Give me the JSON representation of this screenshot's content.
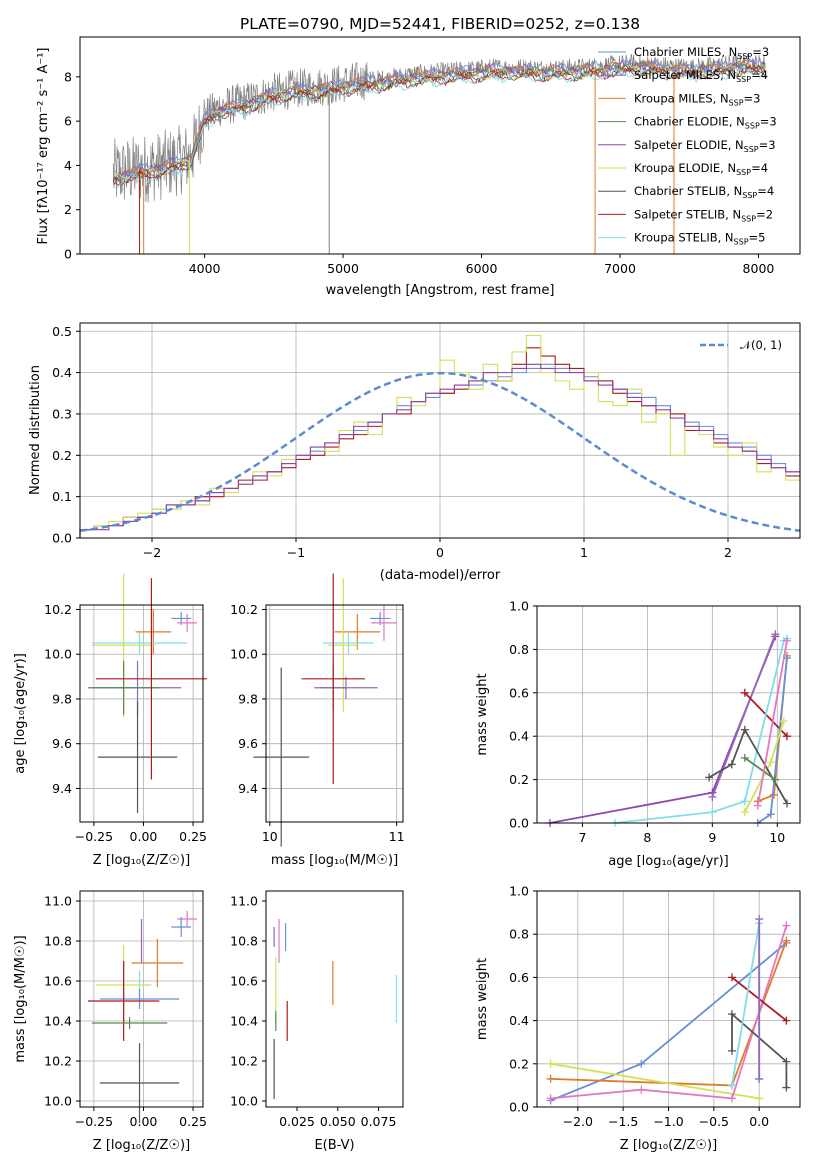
{
  "title": "PLATE=0790, MJD=52441, FIBERID=0252, z=0.138",
  "spectrum": {
    "xlabel": "wavelength [Angstrom, rest frame]",
    "ylabel": "Flux [fλ10⁻¹⁷ erg cm⁻² s⁻¹ A⁻¹]",
    "xlim": [
      3100,
      8300
    ],
    "ylim": [
      0,
      9.8
    ],
    "xticks": [
      "4000",
      "5000",
      "6000",
      "7000",
      "8000"
    ],
    "yticks": [
      "0",
      "2",
      "4",
      "6",
      "8"
    ],
    "legend": [
      {
        "name": "Chabrier MILES, N",
        "sub": "SSP",
        "tail": "=3",
        "color": "#6a8fd6"
      },
      {
        "name": "Salpeter MILES, N",
        "sub": "SSP",
        "tail": "=4",
        "color": "#9467bd"
      },
      {
        "name": "Kroupa MILES, N",
        "sub": "SSP",
        "tail": "=3",
        "color": "#e07b28"
      },
      {
        "name": "Chabrier ELODIE, N",
        "sub": "SSP",
        "tail": "=3",
        "color": "#5a8a4f"
      },
      {
        "name": "Salpeter ELODIE, N",
        "sub": "SSP",
        "tail": "=3",
        "color": "#8e44ad"
      },
      {
        "name": "Kroupa ELODIE, N",
        "sub": "SSP",
        "tail": "=4",
        "color": "#d4e157"
      },
      {
        "name": "Chabrier STELIB, N",
        "sub": "SSP",
        "tail": "=4",
        "color": "#555555"
      },
      {
        "name": "Salpeter STELIB, N",
        "sub": "SSP",
        "tail": "=2",
        "color": "#b0171f"
      },
      {
        "name": "Kroupa STELIB, N",
        "sub": "SSP",
        "tail": "=5",
        "color": "#80deea"
      }
    ]
  },
  "residuals": {
    "xlabel": "(data-model)/error",
    "ylabel": "Normed distribution",
    "legend": "𝒩(0, 1)",
    "xlim": [
      -2.5,
      2.5
    ],
    "ylim": [
      0,
      0.52
    ],
    "xticks": [
      "−2",
      "−1",
      "0",
      "1",
      "2"
    ],
    "yticks": [
      "0.0",
      "0.1",
      "0.2",
      "0.3",
      "0.4",
      "0.5"
    ]
  },
  "panel_age_z": {
    "xlabel": "Z [log₁₀(Z/Z☉)]",
    "ylabel": "age  [log₁₀(age/yr)]",
    "xticks": [
      "−0.25",
      "0.00",
      "0.25"
    ],
    "yticks": [
      "9.4",
      "9.6",
      "9.8",
      "10.0",
      "10.2"
    ]
  },
  "panel_age_mass": {
    "xlabel": "mass [log₁₀(M/M☉)]",
    "xticks": [
      "10",
      "11"
    ],
    "yticks": [
      "9.4",
      "9.6",
      "9.8",
      "10.0",
      "10.2"
    ]
  },
  "panel_mw_age": {
    "xlabel": "age  [log₁₀(age/yr)]",
    "ylabel": "mass weight",
    "xticks": [
      "7",
      "8",
      "9",
      "10"
    ],
    "yticks": [
      "0.0",
      "0.2",
      "0.4",
      "0.6",
      "0.8",
      "1.0"
    ]
  },
  "panel_mass_z": {
    "xlabel": "Z [log₁₀(Z/Z☉)]",
    "ylabel": "mass [log₁₀(M/M☉)]",
    "xticks": [
      "−0.25",
      "0.00",
      "0.25"
    ],
    "yticks": [
      "10.0",
      "10.2",
      "10.4",
      "10.6",
      "10.8",
      "11.0"
    ]
  },
  "panel_mass_ebv": {
    "xlabel": "E(B-V)",
    "xticks": [
      "0.025",
      "0.050",
      "0.075"
    ],
    "yticks": [
      "10.0",
      "10.2",
      "10.4",
      "10.6",
      "10.8",
      "11.0"
    ]
  },
  "panel_mw_z": {
    "xlabel": "Z [log₁₀(Z/Z☉)]",
    "ylabel": "mass weight",
    "xticks": [
      "−2.0",
      "−1.5",
      "−1.0",
      "−0.5",
      "0.0"
    ],
    "yticks": [
      "0.0",
      "0.2",
      "0.4",
      "0.6",
      "0.8",
      "1.0"
    ]
  },
  "chart_data": [
    {
      "type": "line",
      "panel": "spectrum",
      "title": "PLATE=0790, MJD=52441, FIBERID=0252, z=0.138",
      "xlabel": "wavelength [Angstrom, rest frame]",
      "ylabel": "Flux [fλ10⁻¹⁷ erg cm⁻² s⁻¹ A⁻¹]",
      "xlim": [
        3100,
        8300
      ],
      "ylim": [
        0,
        9.8
      ],
      "legend_position": "upper-right",
      "grid": false,
      "continuum": {
        "x": [
          3340,
          3500,
          3700,
          3900,
          4000,
          4100,
          4300,
          4500,
          4700,
          4900,
          5100,
          5300,
          5500,
          5700,
          5900,
          6100,
          6300,
          6500,
          6700,
          6900,
          7100,
          7300,
          7500,
          7700,
          7900,
          8050
        ],
        "y": [
          3.6,
          3.8,
          4.0,
          4.4,
          6.2,
          6.6,
          6.9,
          7.3,
          7.5,
          7.6,
          7.8,
          7.9,
          8.1,
          8.2,
          8.3,
          8.4,
          8.4,
          8.35,
          8.4,
          8.5,
          8.6,
          8.5,
          8.4,
          8.5,
          8.6,
          8.6
        ]
      }
    },
    {
      "type": "bar",
      "panel": "residuals",
      "xlabel": "(data-model)/error",
      "ylabel": "Normed distribution",
      "xlim": [
        -2.5,
        2.5
      ],
      "ylim": [
        0,
        0.52
      ],
      "grid": true,
      "bin_width": 0.1,
      "bin_start": -2.5,
      "series": [
        {
          "name": "",
          "color": "#6a8fd6",
          "values": [
            0.02,
            0.03,
            0.03,
            0.04,
            0.05,
            0.06,
            0.07,
            0.08,
            0.09,
            0.11,
            0.12,
            0.13,
            0.15,
            0.16,
            0.18,
            0.2,
            0.21,
            0.23,
            0.25,
            0.26,
            0.28,
            0.3,
            0.32,
            0.33,
            0.34,
            0.35,
            0.37,
            0.37,
            0.38,
            0.39,
            0.4,
            0.41,
            0.42,
            0.41,
            0.4,
            0.39,
            0.38,
            0.36,
            0.35,
            0.34,
            0.32,
            0.3,
            0.28,
            0.27,
            0.25,
            0.23,
            0.22,
            0.2,
            0.18,
            0.16
          ]
        },
        {
          "name": "",
          "color": "#b0171f",
          "values": [
            0.02,
            0.03,
            0.03,
            0.05,
            0.05,
            0.07,
            0.08,
            0.08,
            0.1,
            0.1,
            0.12,
            0.14,
            0.14,
            0.16,
            0.17,
            0.19,
            0.2,
            0.22,
            0.24,
            0.25,
            0.27,
            0.3,
            0.3,
            0.33,
            0.35,
            0.35,
            0.36,
            0.38,
            0.4,
            0.38,
            0.42,
            0.46,
            0.44,
            0.42,
            0.41,
            0.38,
            0.38,
            0.35,
            0.33,
            0.32,
            0.3,
            0.3,
            0.26,
            0.26,
            0.23,
            0.22,
            0.21,
            0.18,
            0.17,
            0.15
          ]
        },
        {
          "name": "",
          "color": "#d4e157",
          "values": [
            0.02,
            0.03,
            0.04,
            0.05,
            0.06,
            0.07,
            0.07,
            0.09,
            0.08,
            0.12,
            0.11,
            0.13,
            0.16,
            0.15,
            0.19,
            0.2,
            0.22,
            0.21,
            0.26,
            0.28,
            0.25,
            0.3,
            0.34,
            0.32,
            0.35,
            0.43,
            0.4,
            0.36,
            0.42,
            0.38,
            0.45,
            0.49,
            0.4,
            0.38,
            0.36,
            0.4,
            0.33,
            0.32,
            0.36,
            0.28,
            0.3,
            0.2,
            0.27,
            0.25,
            0.22,
            0.2,
            0.23,
            0.16,
            0.17,
            0.14
          ]
        },
        {
          "name": "",
          "color": "#8e44ad",
          "values": [
            0.02,
            0.02,
            0.03,
            0.04,
            0.05,
            0.06,
            0.08,
            0.08,
            0.09,
            0.11,
            0.12,
            0.13,
            0.15,
            0.16,
            0.18,
            0.2,
            0.22,
            0.23,
            0.25,
            0.27,
            0.28,
            0.3,
            0.31,
            0.33,
            0.35,
            0.36,
            0.37,
            0.38,
            0.4,
            0.4,
            0.41,
            0.42,
            0.41,
            0.4,
            0.4,
            0.38,
            0.37,
            0.36,
            0.34,
            0.32,
            0.31,
            0.29,
            0.27,
            0.26,
            0.24,
            0.22,
            0.21,
            0.19,
            0.17,
            0.16
          ]
        }
      ],
      "overlay": {
        "name": "𝒩(0, 1)",
        "type": "gaussian",
        "mean": 0,
        "sigma": 1,
        "color": "#5b8bd0",
        "dash": true
      }
    },
    {
      "type": "scatter",
      "panel": "age_vs_Z",
      "xlim": [
        -0.32,
        0.3
      ],
      "ylim": [
        9.25,
        10.22
      ],
      "grid": true,
      "points": [
        {
          "x": 0.19,
          "y": 10.16,
          "xerr": 0.05,
          "yerr": 0.03,
          "color": "#6a8fd6"
        },
        {
          "x": 0.22,
          "y": 10.14,
          "xerr": 0.05,
          "yerr": 0.04,
          "color": "#e377c2"
        },
        {
          "x": 0.05,
          "y": 10.1,
          "xerr": 0.09,
          "yerr": 0.1,
          "color": "#e07b28"
        },
        {
          "x": -0.02,
          "y": 10.05,
          "xerr": 0.24,
          "yerr": 0.05,
          "color": "#80deea"
        },
        {
          "x": -0.1,
          "y": 10.04,
          "xerr": 0.16,
          "yerr": 0.32,
          "color": "#d4e157"
        },
        {
          "x": -0.03,
          "y": 9.85,
          "xerr": 0.22,
          "yerr": 0.12,
          "color": "#9467bd"
        },
        {
          "x": -0.1,
          "y": 9.85,
          "xerr": 0.18,
          "yerr": 0.12,
          "color": "#5a8a4f"
        },
        {
          "x": 0.04,
          "y": 9.89,
          "xerr": 0.28,
          "yerr": 0.45,
          "color": "#b0171f"
        },
        {
          "x": -0.03,
          "y": 9.54,
          "xerr": 0.2,
          "yerr": 0.25,
          "color": "#555555"
        }
      ]
    },
    {
      "type": "scatter",
      "panel": "age_vs_mass",
      "xlim": [
        9.97,
        11.05
      ],
      "ylim": [
        9.25,
        10.22
      ],
      "grid": true,
      "points": [
        {
          "x": 10.87,
          "y": 10.16,
          "xerr": 0.08,
          "yerr": 0.03,
          "color": "#6a8fd6"
        },
        {
          "x": 10.9,
          "y": 10.14,
          "xerr": 0.1,
          "yerr": 0.08,
          "color": "#e377c2"
        },
        {
          "x": 10.69,
          "y": 10.1,
          "xerr": 0.18,
          "yerr": 0.08,
          "color": "#e07b28"
        },
        {
          "x": 10.62,
          "y": 10.05,
          "xerr": 0.2,
          "yerr": 0.05,
          "color": "#80deea"
        },
        {
          "x": 10.58,
          "y": 10.04,
          "xerr": 0.12,
          "yerr": 0.3,
          "color": "#d4e157"
        },
        {
          "x": 10.5,
          "y": 9.85,
          "xerr": 0.1,
          "yerr": 0.1,
          "color": "#5a8a4f"
        },
        {
          "x": 10.6,
          "y": 9.85,
          "xerr": 0.25,
          "yerr": 0.05,
          "color": "#9467bd"
        },
        {
          "x": 10.5,
          "y": 9.89,
          "xerr": 0.25,
          "yerr": 0.47,
          "color": "#b0171f"
        },
        {
          "x": 10.09,
          "y": 9.54,
          "xerr": 0.22,
          "yerr": 0.4,
          "color": "#555555"
        }
      ]
    },
    {
      "type": "line",
      "panel": "massweight_vs_age",
      "xlim": [
        6.3,
        10.35
      ],
      "ylim": [
        0,
        1
      ],
      "grid": true,
      "series": [
        {
          "color": "#8e44ad",
          "x": [
            6.5,
            9.0,
            9.97
          ],
          "y": [
            0.0,
            0.14,
            0.86
          ]
        },
        {
          "color": "#9467bd",
          "x": [
            9.0,
            9.97
          ],
          "y": [
            0.12,
            0.87
          ]
        },
        {
          "color": "#b0171f",
          "x": [
            9.5,
            10.15
          ],
          "y": [
            0.6,
            0.4
          ]
        },
        {
          "color": "#80deea",
          "x": [
            7.5,
            9.0,
            9.5,
            10.1,
            10.15
          ],
          "y": [
            0.0,
            0.05,
            0.1,
            0.84,
            0.85
          ]
        },
        {
          "color": "#e07b28",
          "x": [
            9.7,
            9.95,
            10.15
          ],
          "y": [
            0.1,
            0.13,
            0.77
          ]
        },
        {
          "color": "#6a8fd6",
          "x": [
            9.7,
            9.9,
            10.15
          ],
          "y": [
            0.0,
            0.04,
            0.76
          ]
        },
        {
          "color": "#d4e157",
          "x": [
            9.5,
            9.9,
            10.1
          ],
          "y": [
            0.05,
            0.28,
            0.47
          ]
        },
        {
          "color": "#555555",
          "x": [
            8.95,
            9.3,
            9.5,
            10.15
          ],
          "y": [
            0.21,
            0.27,
            0.43,
            0.09
          ]
        },
        {
          "color": "#5a8a4f",
          "x": [
            9.5,
            9.97
          ],
          "y": [
            0.3,
            0.2
          ]
        },
        {
          "color": "#e377c2",
          "x": [
            9.7,
            10.15
          ],
          "y": [
            0.08,
            0.84
          ]
        }
      ]
    },
    {
      "type": "scatter",
      "panel": "mass_vs_Z",
      "xlim": [
        -0.32,
        0.3
      ],
      "ylim": [
        9.97,
        11.05
      ],
      "grid": true,
      "points": [
        {
          "x": 0.22,
          "y": 10.91,
          "xerr": 0.05,
          "yerr": 0.04,
          "color": "#e377c2"
        },
        {
          "x": 0.19,
          "y": 10.87,
          "xerr": 0.05,
          "yerr": 0.05,
          "color": "#6a8fd6"
        },
        {
          "x": -0.01,
          "y": 10.8,
          "xerr": 0.0,
          "yerr": 0.11,
          "color": "#9467bd"
        },
        {
          "x": 0.07,
          "y": 10.69,
          "xerr": 0.13,
          "yerr": 0.12,
          "color": "#e07b28"
        },
        {
          "x": -0.02,
          "y": 10.6,
          "xerr": 0.0,
          "yerr": 0.05,
          "color": "#80deea"
        },
        {
          "x": -0.1,
          "y": 10.58,
          "xerr": 0.14,
          "yerr": 0.2,
          "color": "#d4e157"
        },
        {
          "x": -0.02,
          "y": 10.51,
          "xerr": 0.2,
          "yerr": 0.05,
          "color": "#6a8fd6"
        },
        {
          "x": -0.1,
          "y": 10.5,
          "xerr": 0.18,
          "yerr": 0.2,
          "color": "#b0171f"
        },
        {
          "x": -0.07,
          "y": 10.39,
          "xerr": 0.19,
          "yerr": 0.03,
          "color": "#5a8a4f"
        },
        {
          "x": -0.02,
          "y": 10.09,
          "xerr": 0.2,
          "yerr": 0.2,
          "color": "#555555"
        }
      ]
    },
    {
      "type": "scatter",
      "panel": "mass_vs_EBV",
      "xlim": [
        0.006,
        0.09
      ],
      "ylim": [
        9.97,
        11.05
      ],
      "grid": false,
      "points": [
        {
          "x": 0.011,
          "y": 10.82,
          "yerr": 0.05,
          "color": "#9467bd"
        },
        {
          "x": 0.014,
          "y": 10.8,
          "yerr": 0.11,
          "color": "#e377c2"
        },
        {
          "x": 0.018,
          "y": 10.82,
          "yerr": 0.07,
          "color": "#6a8fd6"
        },
        {
          "x": 0.012,
          "y": 10.55,
          "yerr": 0.17,
          "color": "#d4e157"
        },
        {
          "x": 0.012,
          "y": 10.4,
          "yerr": 0.05,
          "color": "#5a8a4f"
        },
        {
          "x": 0.019,
          "y": 10.4,
          "yerr": 0.1,
          "color": "#b0171f"
        },
        {
          "x": 0.011,
          "y": 10.16,
          "yerr": 0.15,
          "color": "#555555"
        },
        {
          "x": 0.047,
          "y": 10.59,
          "yerr": 0.11,
          "color": "#e07b28"
        },
        {
          "x": 0.086,
          "y": 10.51,
          "yerr": 0.12,
          "color": "#80deea"
        }
      ]
    },
    {
      "type": "line",
      "panel": "massweight_vs_Z",
      "xlim": [
        -2.45,
        0.45
      ],
      "ylim": [
        0,
        1
      ],
      "grid": true,
      "series": [
        {
          "color": "#6a8fd6",
          "x": [
            -2.3,
            -1.3,
            0.3
          ],
          "y": [
            0.03,
            0.2,
            0.76
          ]
        },
        {
          "color": "#e07b28",
          "x": [
            -2.3,
            -0.3,
            0.3
          ],
          "y": [
            0.13,
            0.1,
            0.77
          ]
        },
        {
          "color": "#d4e157",
          "x": [
            -2.3,
            0.0
          ],
          "y": [
            0.2,
            0.04
          ]
        },
        {
          "color": "#e377c2",
          "x": [
            -2.3,
            -1.3,
            -0.3,
            0.3
          ],
          "y": [
            0.04,
            0.08,
            0.04,
            0.84
          ]
        },
        {
          "color": "#b0171f",
          "x": [
            -0.3,
            0.3
          ],
          "y": [
            0.6,
            0.4
          ]
        },
        {
          "color": "#555555",
          "x": [
            -0.3,
            -0.3,
            0.3,
            0.3
          ],
          "y": [
            0.26,
            0.43,
            0.21,
            0.09
          ]
        },
        {
          "color": "#80deea",
          "x": [
            -0.3,
            0.0,
            0.0
          ],
          "y": [
            0.1,
            0.85,
            0.13
          ]
        },
        {
          "color": "#9467bd",
          "x": [
            0.0,
            0.0
          ],
          "y": [
            0.87,
            0.13
          ]
        }
      ]
    }
  ]
}
